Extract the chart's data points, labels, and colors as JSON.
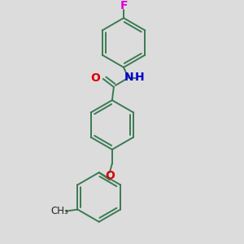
{
  "background_color": "#dcdcdc",
  "bond_color": "#3a7a52",
  "atom_colors": {
    "F": "#dd00dd",
    "O": "#dd0000",
    "N": "#0000cc",
    "H_color": "#0000cc"
  },
  "bond_lw": 1.4,
  "ring_r": 0.3,
  "figsize": [
    3.0,
    3.0
  ],
  "dpi": 100,
  "xlim": [
    0.4,
    2.6
  ],
  "ylim": [
    0.05,
    2.95
  ]
}
